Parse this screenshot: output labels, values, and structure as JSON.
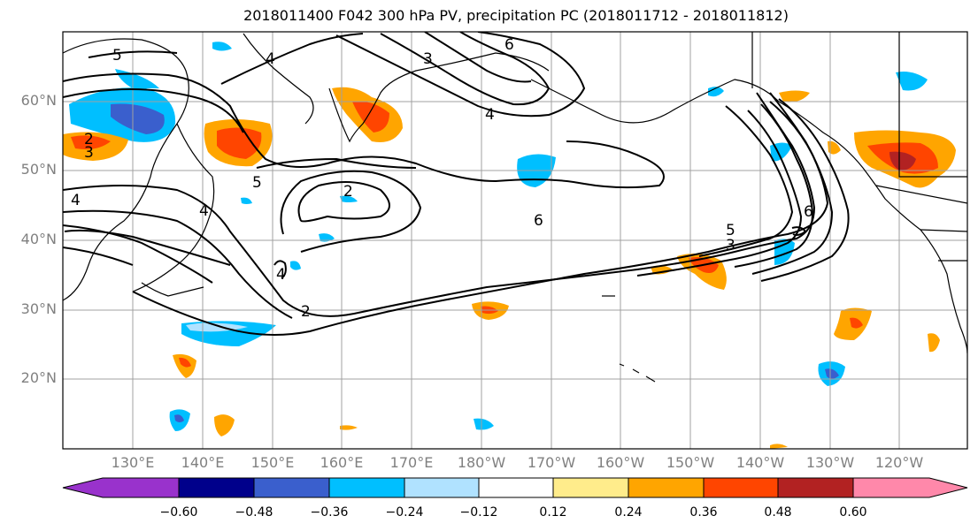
{
  "title": "2018011400 F042 300 hPa PV, precipitation PC (2018011712 - 2018011812)",
  "lat_labels": [
    "60°N",
    "50°N",
    "40°N",
    "30°N",
    "20°N"
  ],
  "lon_labels": [
    "130°E",
    "140°E",
    "150°E",
    "160°E",
    "170°E",
    "180°W",
    "170°W",
    "160°W",
    "150°W",
    "140°W",
    "130°W",
    "120°W"
  ],
  "contour_labels": [
    "5",
    "4",
    "3",
    "6",
    "4",
    "2",
    "3",
    "5",
    "4",
    "2",
    "6",
    "5",
    "3",
    "6",
    "4",
    "2",
    "4"
  ],
  "colorbar": {
    "ticks": [
      "−0.60",
      "−0.48",
      "−0.36",
      "−0.24",
      "−0.12",
      "0.12",
      "0.24",
      "0.36",
      "0.48",
      "0.60"
    ],
    "colors": [
      "#9932cc",
      "#00008b",
      "#3a5fcd",
      "#00bfff",
      "#b0e2ff",
      "#ffffff",
      "#ffec8b",
      "#ffa500",
      "#ff4500",
      "#b22222",
      "#ff88aa"
    ]
  },
  "colors": {
    "negative_strong": "#3a5fcd",
    "negative_mid": "#00bfff",
    "negative_weak": "#b0e2ff",
    "positive_weak": "#ffec8b",
    "positive_mid": "#ffa500",
    "positive_strong": "#ff4500"
  }
}
